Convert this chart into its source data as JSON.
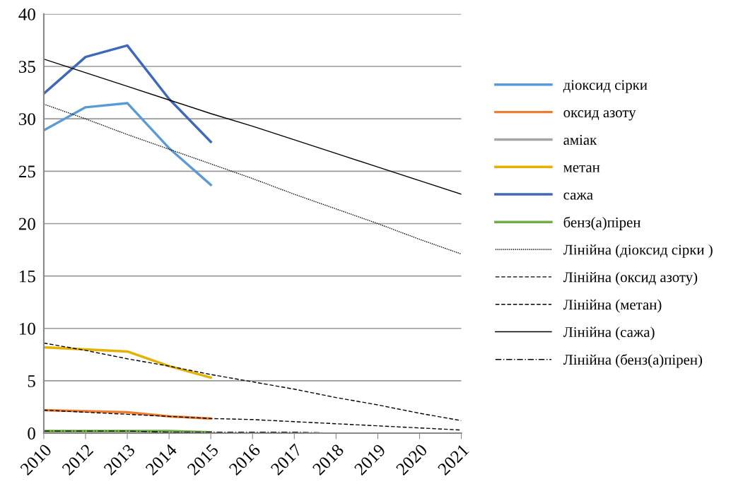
{
  "chart_data": {
    "type": "line",
    "categories": [
      "2010",
      "2012",
      "2013",
      "2014",
      "2015",
      "2016",
      "2017",
      "2018",
      "2019",
      "2020",
      "2021"
    ],
    "series": [
      {
        "name": "діоксид сірки",
        "color": "#5b9bd5",
        "values": [
          28.9,
          31.1,
          31.5,
          27.2,
          23.7,
          null,
          null,
          null,
          null,
          null,
          null
        ]
      },
      {
        "name": "оксид азоту",
        "color": "#ed7d31",
        "values": [
          2.2,
          2.1,
          2.0,
          1.6,
          1.4,
          null,
          null,
          null,
          null,
          null,
          null
        ]
      },
      {
        "name": "аміак",
        "color": "#a5a5a5",
        "values": [
          null,
          null,
          null,
          null,
          null,
          null,
          null,
          null,
          null,
          null,
          null
        ]
      },
      {
        "name": "метан",
        "color": "#e6b000",
        "values": [
          8.2,
          8.0,
          7.8,
          6.4,
          5.3,
          null,
          null,
          null,
          null,
          null,
          null
        ]
      },
      {
        "name": "сажа",
        "color": "#4068b8",
        "values": [
          32.4,
          35.9,
          37.0,
          31.9,
          27.8,
          null,
          null,
          null,
          null,
          null,
          null
        ]
      },
      {
        "name": "бенз(а)пірен",
        "color": "#70ad47",
        "values": [
          0.2,
          0.2,
          0.2,
          0.2,
          0.1,
          null,
          null,
          null,
          null,
          null,
          null
        ]
      },
      {
        "name": "Лінійна (діоксид сірки )",
        "color": "#000000",
        "line_style": "dotted",
        "values": [
          31.4,
          30.0,
          28.5,
          27.1,
          25.7,
          24.3,
          22.8,
          21.4,
          20.0,
          18.5,
          17.1
        ]
      },
      {
        "name": "Лінійна (оксид азоту)",
        "color": "#000000",
        "line_style": "dashed",
        "values": [
          2.2,
          2.0,
          1.8,
          1.6,
          1.4,
          1.3,
          1.1,
          0.9,
          0.7,
          0.5,
          0.3
        ]
      },
      {
        "name": "Лінійна (метан)",
        "color": "#000000",
        "line_style": "dashed",
        "values": [
          8.6,
          7.9,
          7.1,
          6.4,
          5.6,
          4.9,
          4.2,
          3.4,
          2.7,
          1.9,
          1.2
        ]
      },
      {
        "name": "Лінійна (сажа)",
        "color": "#000000",
        "line_style": "solid",
        "values": [
          35.7,
          34.4,
          33.1,
          31.8,
          30.5,
          29.3,
          28.0,
          26.7,
          25.4,
          24.1,
          22.8
        ]
      },
      {
        "name": "Лінійна (бенз(а)пірен)",
        "color": "#000000",
        "line_style": "dashdot",
        "values": [
          0.2,
          0.2,
          0.2,
          0.1,
          0.1,
          0.1,
          0.1,
          0.0,
          0.0,
          0.0,
          0.0
        ]
      }
    ],
    "ylim": [
      0,
      40
    ],
    "yticks": [
      0,
      5,
      10,
      15,
      20,
      25,
      30,
      35,
      40
    ],
    "grid": "y",
    "legend": "right",
    "marker": "none",
    "line_style": "solid"
  }
}
